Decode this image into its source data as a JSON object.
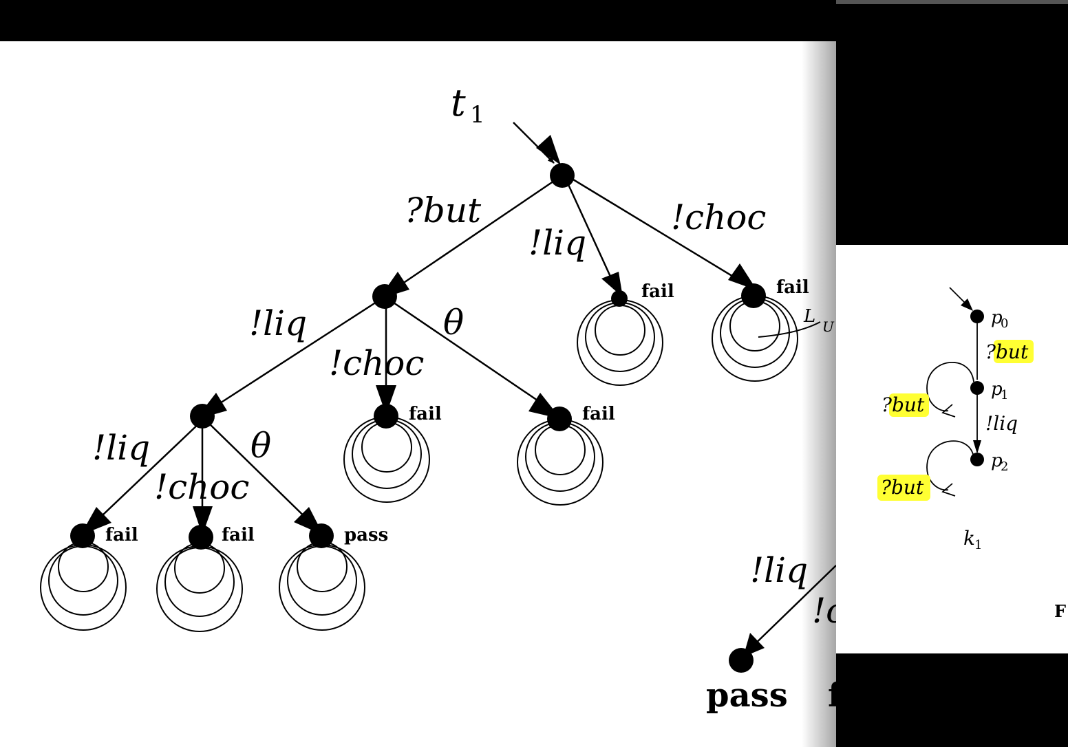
{
  "main_diagram": {
    "title": "t",
    "title_sub": "1",
    "edges": {
      "root_but": "?but",
      "root_liq": "!liq",
      "root_choc": "!choc",
      "n1_liq": "!liq",
      "n1_choc": "!choc",
      "n1_theta": "θ",
      "n2_liq": "!liq",
      "n2_choc": "!choc",
      "n2_theta": "θ",
      "partial_liq": "!liq",
      "partial_choc": "!c"
    },
    "verdicts": {
      "v_root_liq": "fail",
      "v_root_choc": "fail",
      "v_n1_choc": "fail",
      "v_n1_theta": "fail",
      "v_n2_liq": "fail",
      "v_n2_choc": "fail",
      "v_n2_theta": "pass",
      "partial_pass": "pass",
      "partial_f": "f"
    },
    "cutoff_label": "L",
    "cutoff_label_sub": "U"
  },
  "side_diagram": {
    "states": [
      "p",
      "p",
      "p"
    ],
    "state_subs": [
      "0",
      "1",
      "2"
    ],
    "edge_but_top": "?but",
    "edge_liq": "!liq",
    "loop1": "?but",
    "loop2": "?but",
    "caption": "k",
    "caption_sub": "1",
    "figure_label": "F"
  },
  "colors": {
    "highlight": "#ffff33",
    "ink": "#000000"
  }
}
